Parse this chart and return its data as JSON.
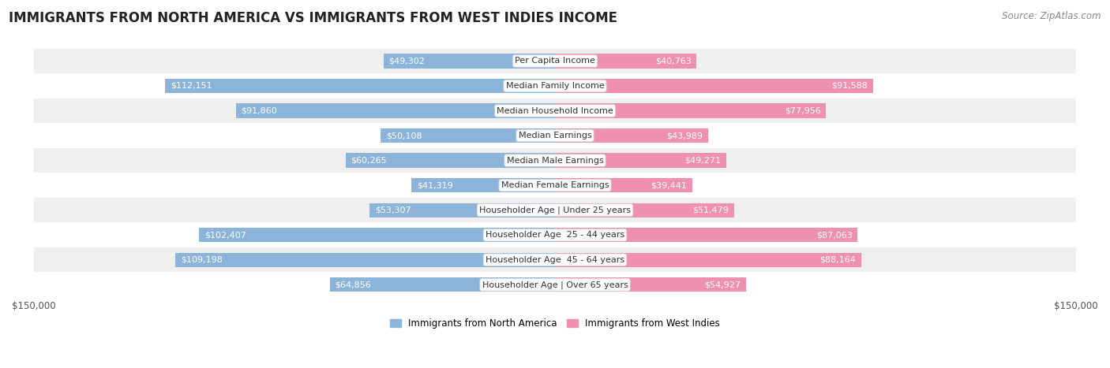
{
  "title": "IMMIGRANTS FROM NORTH AMERICA VS IMMIGRANTS FROM WEST INDIES INCOME",
  "source": "Source: ZipAtlas.com",
  "categories": [
    "Per Capita Income",
    "Median Family Income",
    "Median Household Income",
    "Median Earnings",
    "Median Male Earnings",
    "Median Female Earnings",
    "Householder Age | Under 25 years",
    "Householder Age  25 - 44 years",
    "Householder Age  45 - 64 years",
    "Householder Age | Over 65 years"
  ],
  "north_america": [
    49302,
    112151,
    91860,
    50108,
    60265,
    41319,
    53307,
    102407,
    109198,
    64856
  ],
  "west_indies": [
    40763,
    91588,
    77956,
    43989,
    49271,
    39441,
    51479,
    87063,
    88164,
    54927
  ],
  "north_america_labels": [
    "$49,302",
    "$112,151",
    "$91,860",
    "$50,108",
    "$60,265",
    "$41,319",
    "$53,307",
    "$102,407",
    "$109,198",
    "$64,856"
  ],
  "west_indies_labels": [
    "$40,763",
    "$91,588",
    "$77,956",
    "$43,989",
    "$49,271",
    "$39,441",
    "$51,479",
    "$87,063",
    "$88,164",
    "$54,927"
  ],
  "max_value": 150000,
  "color_na": "#8cb4d8",
  "color_wi": "#f090b0",
  "bg_row_light": "#efefef",
  "bg_row_white": "#ffffff",
  "label_color_inside": "#ffffff",
  "label_color_outside": "#555555",
  "title_fontsize": 12,
  "source_fontsize": 8.5,
  "bar_fontsize": 8,
  "legend_fontsize": 8.5,
  "axis_fontsize": 8.5,
  "bar_height": 0.58,
  "inside_threshold": 25000
}
